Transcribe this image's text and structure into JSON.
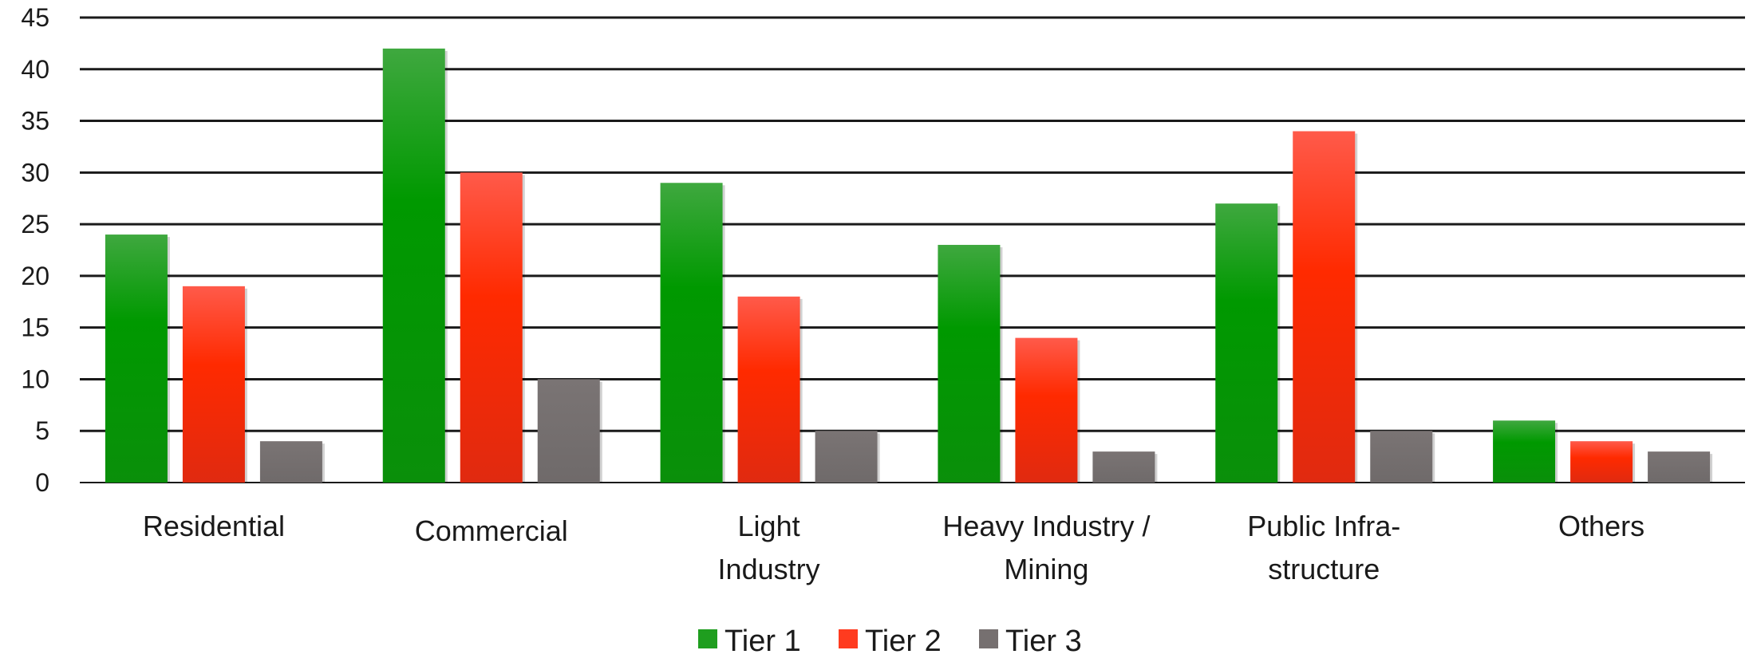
{
  "chart_data": {
    "type": "bar",
    "categories": [
      [
        "Residential"
      ],
      [
        "Commercial"
      ],
      [
        "Light",
        "Industry"
      ],
      [
        "Heavy Industry /",
        "Mining"
      ],
      [
        "Public Infra-",
        "structure"
      ],
      [
        "Others"
      ]
    ],
    "series": [
      {
        "name": "Tier 1",
        "color": "#1f9e1f",
        "values": [
          24,
          42,
          29,
          23,
          27,
          6
        ]
      },
      {
        "name": "Tier 2",
        "color": "#ff3b1f",
        "values": [
          19,
          30,
          18,
          14,
          34,
          4
        ]
      },
      {
        "name": "Tier 3",
        "color": "#767070",
        "values": [
          4,
          10,
          5,
          3,
          5,
          3
        ]
      }
    ],
    "yticks": [
      0,
      5,
      10,
      15,
      20,
      25,
      30,
      35,
      40,
      45
    ],
    "ylim": [
      0,
      45
    ],
    "grid": true,
    "legend_position": "bottom-center",
    "title": "",
    "xlabel": "",
    "ylabel": ""
  }
}
